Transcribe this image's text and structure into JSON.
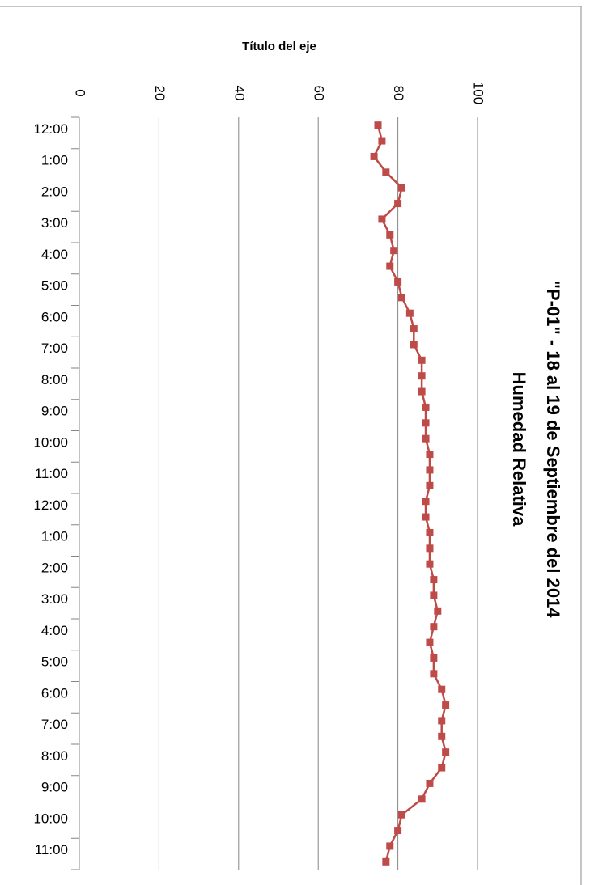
{
  "chart_data": {
    "type": "line",
    "title": "\"P-01\" - 18 al 19 de Septiembre del 2014",
    "subtitle": "Humedad Relativa",
    "y_axis_title": "Título del eje",
    "categories": [
      "12:00",
      null,
      "1:00",
      null,
      "2:00",
      null,
      "3:00",
      null,
      "4:00",
      null,
      "5:00",
      null,
      "6:00",
      null,
      "7:00",
      null,
      "8:00",
      null,
      "9:00",
      null,
      "10:00",
      null,
      "11:00",
      null,
      "12:00",
      null,
      "1:00",
      null,
      "2:00",
      null,
      "3:00",
      null,
      "4:00",
      null,
      "5:00",
      null,
      "6:00",
      null,
      "7:00",
      null,
      "8:00",
      null,
      "9:00",
      null,
      "10:00",
      null,
      "11:00",
      null
    ],
    "series": [
      {
        "name": "Humedad Relativa",
        "color": "#be4b48",
        "values": [
          75,
          76,
          74,
          77,
          81,
          80,
          76,
          78,
          79,
          78,
          80,
          81,
          83,
          84,
          84,
          86,
          86,
          86,
          87,
          87,
          87,
          88,
          88,
          88,
          87,
          87,
          88,
          88,
          88,
          89,
          89,
          90,
          89,
          88,
          89,
          89,
          91,
          92,
          91,
          91,
          92,
          91,
          88,
          86,
          81,
          80,
          78,
          77
        ]
      }
    ],
    "ylim": [
      0,
      100
    ],
    "yticks": [
      0,
      20,
      40,
      60,
      80,
      100
    ],
    "grid": true
  }
}
